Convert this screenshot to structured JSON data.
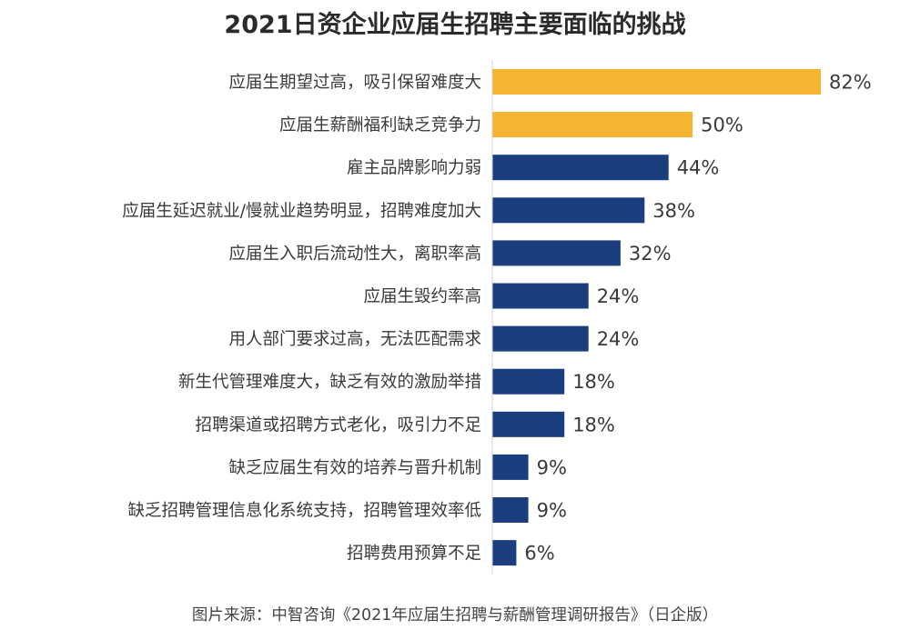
{
  "chart_data": {
    "type": "bar",
    "orientation": "horizontal",
    "title": "2021日资企业应届生招聘主要面临的挑战",
    "categories": [
      "应届生期望过高，吸引保留难度大",
      "应届生薪酬福利缺乏竞争力",
      "雇主品牌影响力弱",
      "应届生延迟就业/慢就业趋势明显，招聘难度加大",
      "应届生入职后流动性大，离职率高",
      "应届生毁约率高",
      "用人部门要求过高，无法匹配需求",
      "新生代管理难度大，缺乏有效的激励举措",
      "招聘渠道或招聘方式老化，吸引力不足",
      "缺乏应届生有效的培养与晋升机制",
      "缺乏招聘管理信息化系统支持，招聘管理效率低",
      "招聘费用预算不足"
    ],
    "values": [
      82,
      50,
      44,
      38,
      32,
      24,
      24,
      18,
      18,
      9,
      9,
      6
    ],
    "value_labels": [
      "82%",
      "50%",
      "44%",
      "38%",
      "32%",
      "24%",
      "24%",
      "18%",
      "18%",
      "9%",
      "9%",
      "6%"
    ],
    "highlight_count": 2,
    "colors": {
      "highlight": "#F6B530",
      "default": "#1B3F7E",
      "axis": "#cfcfcf"
    },
    "xlim": [
      0,
      82
    ],
    "grid": false,
    "legend": "none"
  },
  "source": "图片来源：中智咨询《2021年应届生招聘与薪酬管理调研报告》（日企版）"
}
